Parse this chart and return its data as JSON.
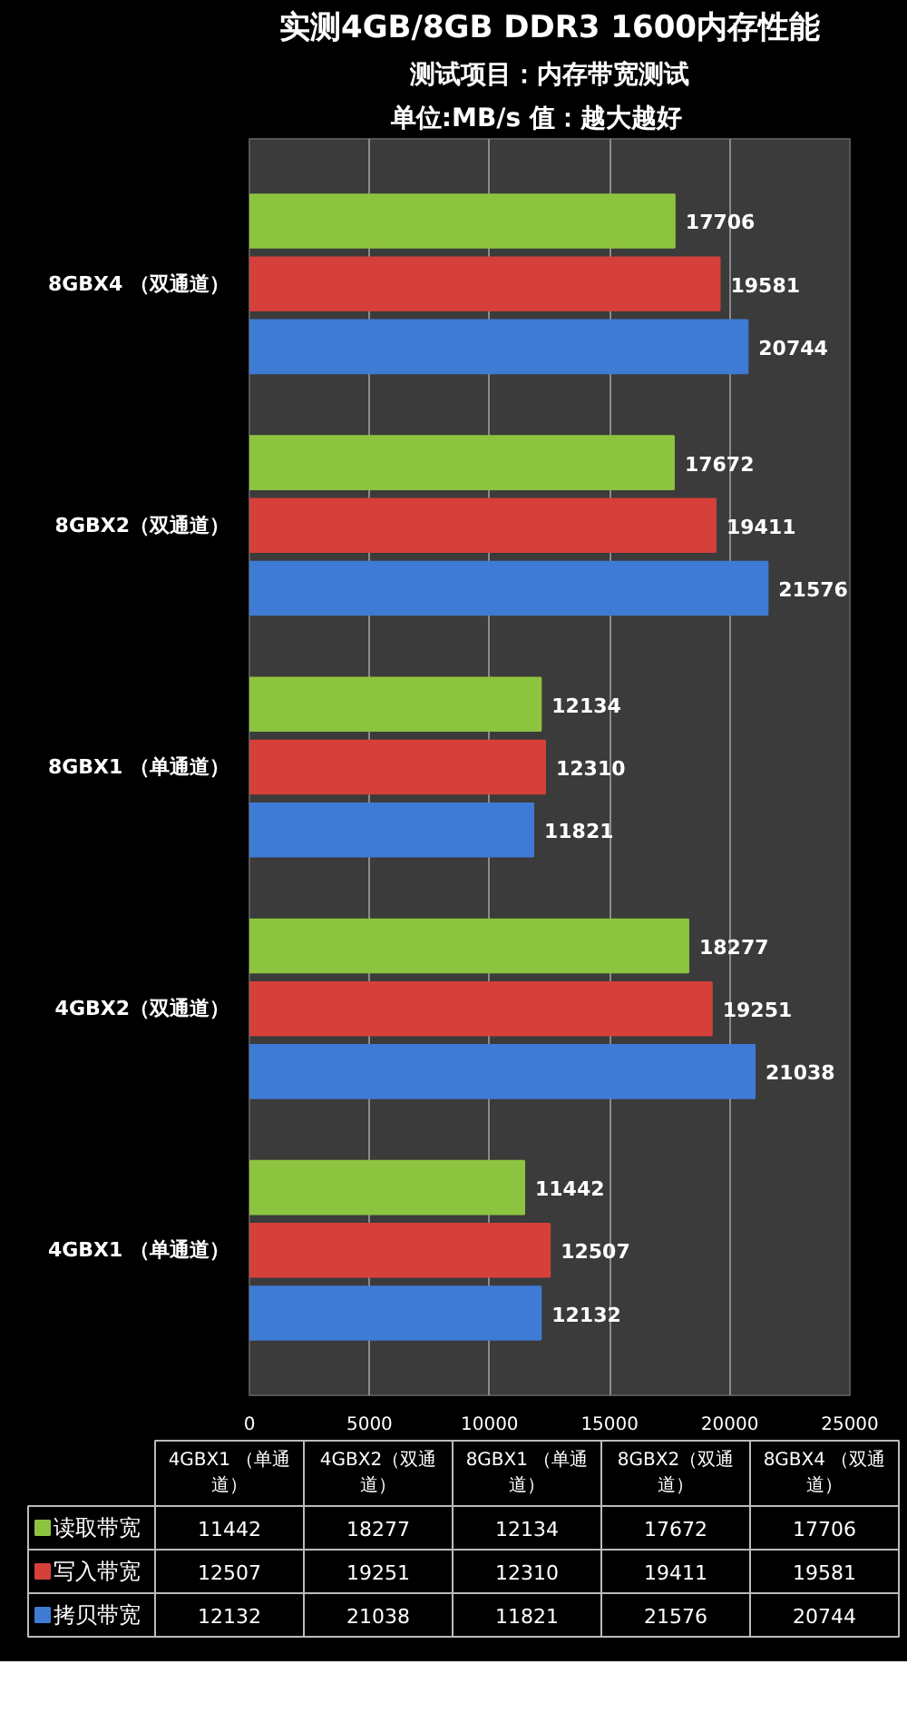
{
  "chart_data": [
    {
      "type": "bar",
      "orientation": "horizontal",
      "title": "实测4GB/8GB DDR3 1600内存性能",
      "subtitle": "测试项目：内存带宽测试",
      "annotations": [
        "单位:MB/s    值：越大越好"
      ],
      "categories": [
        "8GBX4 （双通道）",
        "8GBX2（双通道）",
        "8GBX1 （单通道）",
        "4GBX2（双通道）",
        "4GBX1 （单通道）"
      ],
      "series": [
        {
          "color": "#8dc43f",
          "values": [
            17706,
            17672,
            12134,
            18277,
            11442
          ]
        },
        {
          "color": "#d6403b",
          "values": [
            19581,
            19411,
            12310,
            19251,
            12507
          ]
        },
        {
          "color": "#3f7bd4",
          "values": [
            20744,
            21576,
            11821,
            21038,
            12132
          ]
        }
      ],
      "xlim": [
        0,
        25000
      ],
      "xticks": [
        0,
        5000,
        10000,
        15000,
        20000,
        25000
      ],
      "grid": "x",
      "data_labels": true
    },
    {
      "type": "other",
      "categories": [
        "4GBX1 （单通道）",
        "4GBX2（双通道）",
        "8GBX1 （单通道）",
        "8GBX2（双通道）",
        "8GBX4 （双通道）"
      ],
      "series": [
        {
          "name": "读取带宽",
          "values": [
            11442,
            18277,
            12134,
            17672,
            17706
          ]
        },
        {
          "name": "写入带宽",
          "values": [
            12507,
            19251,
            12310,
            19411,
            19581
          ]
        },
        {
          "name": "拷贝带宽",
          "values": [
            12132,
            21038,
            11821,
            21576,
            20744
          ]
        }
      ],
      "data_labels": true
    }
  ]
}
